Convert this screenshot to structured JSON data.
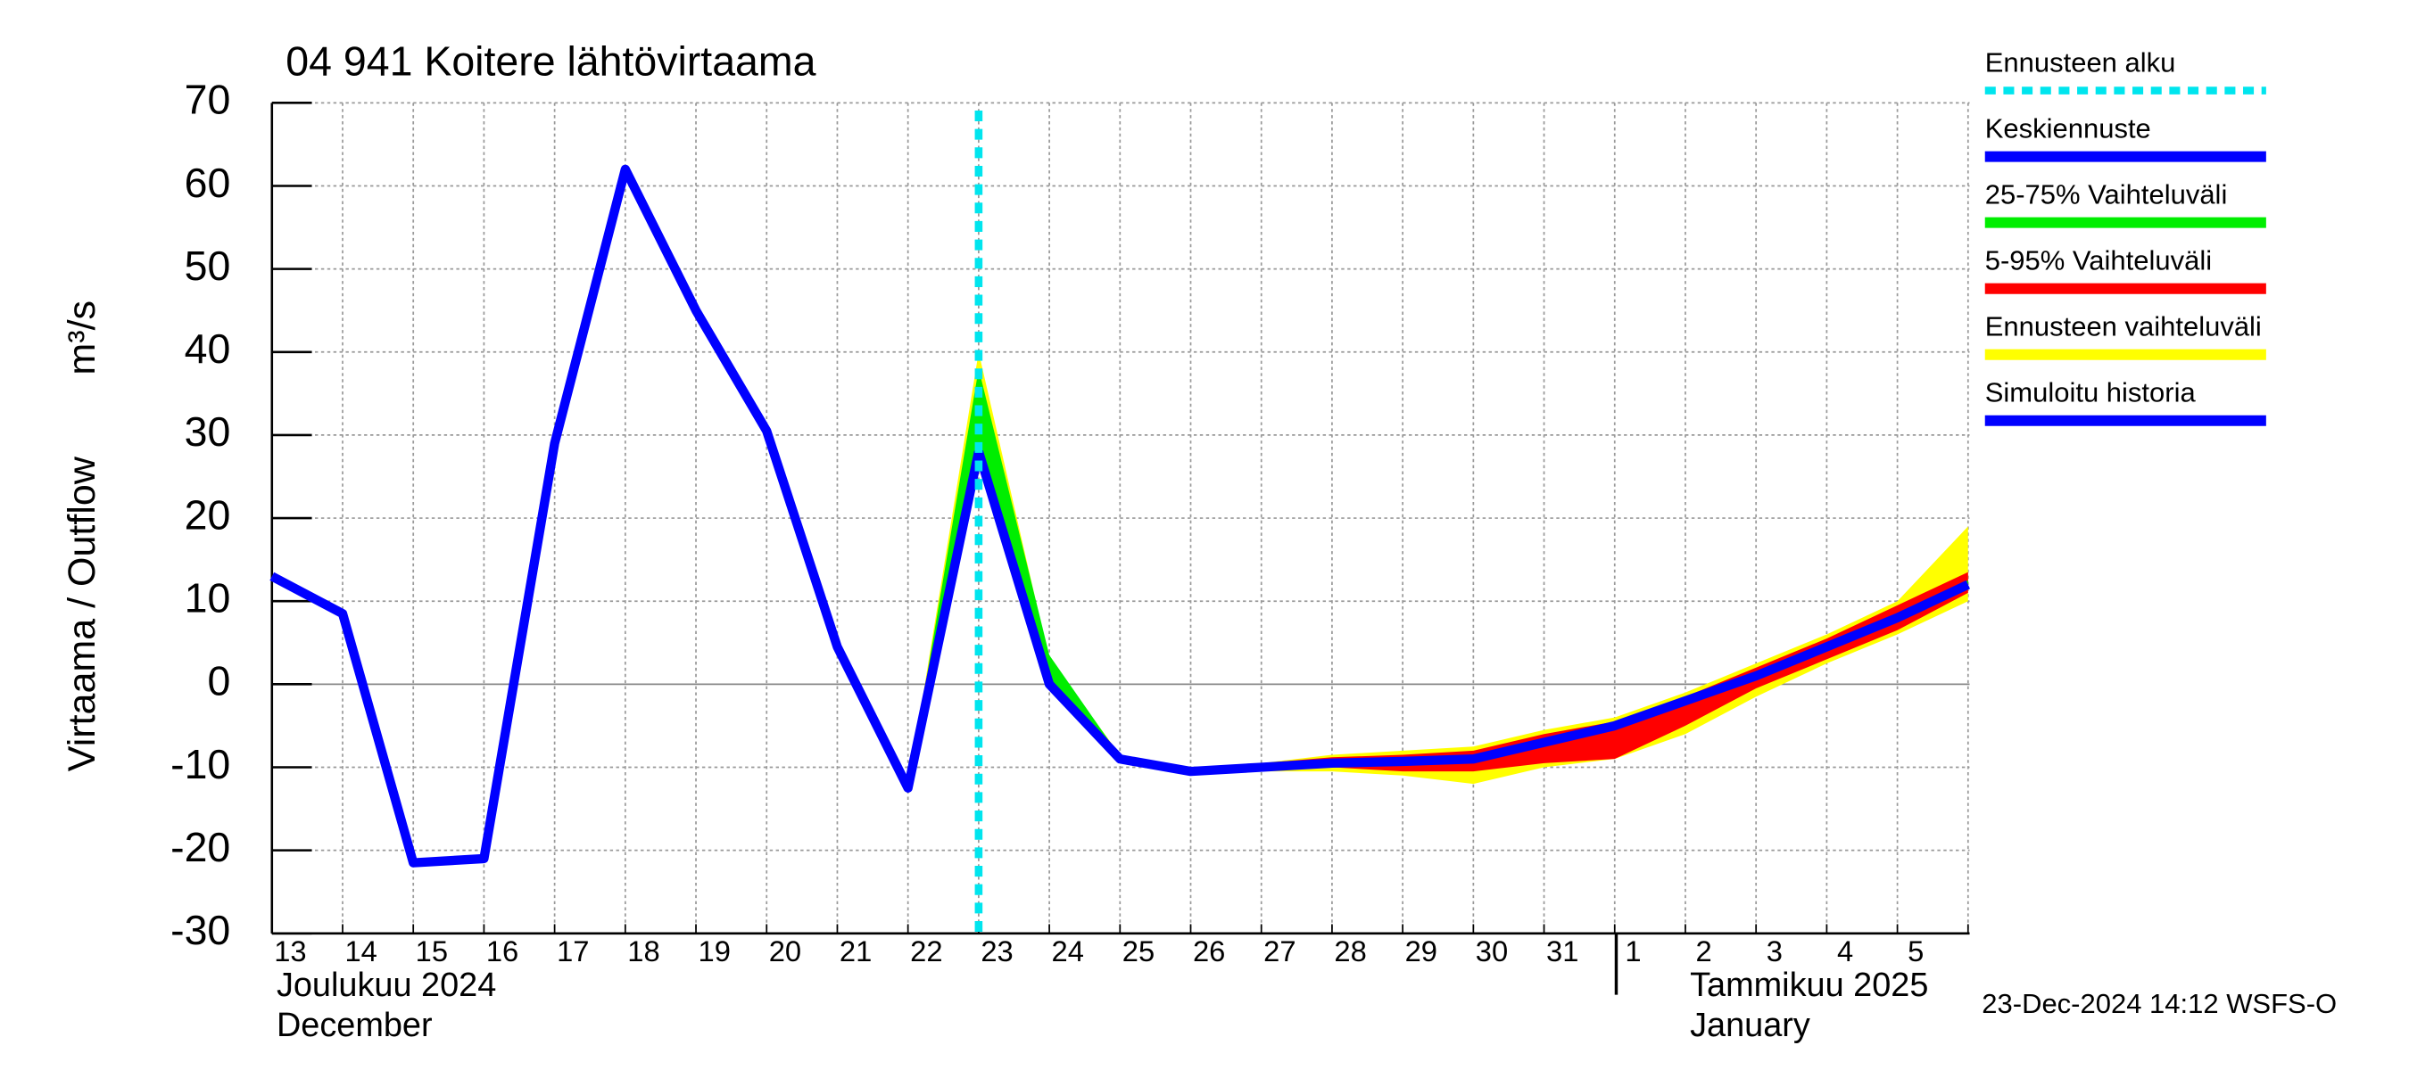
{
  "chart_data": {
    "type": "line",
    "title": "04 941 Koitere lähtövirtaama",
    "ylabel": "Virtaama / Outflow",
    "yunit": "m³/s",
    "month_labels": [
      "Joulukuu  2024",
      "December",
      "Tammikuu  2025",
      "January"
    ],
    "footer": "23-Dec-2024 14:12 WSFS-O",
    "categories": [
      "13",
      "14",
      "15",
      "16",
      "17",
      "18",
      "19",
      "20",
      "21",
      "22",
      "23",
      "24",
      "25",
      "26",
      "27",
      "28",
      "29",
      "30",
      "31",
      "1",
      "2",
      "3",
      "4",
      "5",
      null
    ],
    "ylim": [
      -30,
      70
    ],
    "yticks": [
      -30,
      -20,
      -10,
      0,
      10,
      20,
      30,
      40,
      50,
      60,
      70
    ],
    "grid": true,
    "forecast_start": {
      "name": "Ennusteen alku",
      "color": "#00e5ee",
      "x": 10
    },
    "series": [
      {
        "name": "Keskiennuste",
        "color": "#0000ff",
        "kind": "line",
        "values": [
          null,
          null,
          null,
          null,
          null,
          null,
          null,
          null,
          null,
          null,
          28,
          0,
          -9,
          -10.5,
          -10,
          -9.5,
          -9.3,
          -9,
          -7,
          -5,
          -2,
          1,
          4.5,
          8,
          12
        ]
      },
      {
        "name": "25-75% Vaihteluväli",
        "color": "#00ee00",
        "kind": "band",
        "low": [
          null,
          null,
          null,
          null,
          null,
          null,
          null,
          null,
          null,
          -12.5,
          28,
          0,
          -9,
          -10.7,
          -10.3,
          -9.8,
          -9.7,
          -9.4,
          -7.4,
          -5.4,
          -2.4,
          0.6,
          4.1,
          7.6,
          11.5
        ],
        "high": [
          null,
          null,
          null,
          null,
          null,
          null,
          null,
          null,
          null,
          -12.5,
          38,
          3.5,
          -8.7,
          -10.3,
          -9.7,
          -9.2,
          -8.9,
          -8.6,
          -6.6,
          -4.6,
          -1.6,
          1.4,
          4.9,
          8.4,
          12.5
        ]
      },
      {
        "name": "5-95% Vaihteluväli",
        "color": "#ff0000",
        "kind": "band",
        "low": [
          null,
          null,
          null,
          null,
          null,
          null,
          null,
          null,
          null,
          -12.5,
          28,
          0,
          -9,
          -10.8,
          -10.3,
          -10,
          -10.5,
          -10.5,
          -9.5,
          -9,
          -5,
          -0.5,
          3,
          6.5,
          11
        ],
        "high": [
          null,
          null,
          null,
          null,
          null,
          null,
          null,
          null,
          null,
          -12.5,
          29,
          0.5,
          -8.5,
          -10,
          -9.5,
          -8.8,
          -8.5,
          -8,
          -6,
          -4.5,
          -1.5,
          2,
          5.5,
          9.5,
          13.5
        ]
      },
      {
        "name": "Ennusteen vaihteluväli",
        "color": "#ffff00",
        "kind": "band",
        "low": [
          null,
          null,
          null,
          null,
          null,
          null,
          null,
          null,
          null,
          -12.5,
          28,
          0,
          -9,
          -11,
          -10.5,
          -10.5,
          -11,
          -12,
          -10,
          -9,
          -6,
          -1.5,
          2.5,
          6,
          10
        ],
        "high": [
          null,
          null,
          null,
          null,
          null,
          null,
          null,
          null,
          null,
          -12.5,
          40,
          3,
          -8.5,
          -10,
          -9.5,
          -8.5,
          -8,
          -7.5,
          -5.5,
          -4,
          -1,
          2.5,
          6,
          10,
          19
        ]
      },
      {
        "name": "Simuloitu historia",
        "color": "#0000ff",
        "kind": "line",
        "values": [
          13,
          8.5,
          -21.5,
          -21,
          29,
          62,
          45,
          30.5,
          4.5,
          -12.5,
          28,
          null,
          null,
          null,
          null,
          null,
          null,
          null,
          null,
          null,
          null,
          null,
          null,
          null,
          null
        ]
      }
    ]
  }
}
